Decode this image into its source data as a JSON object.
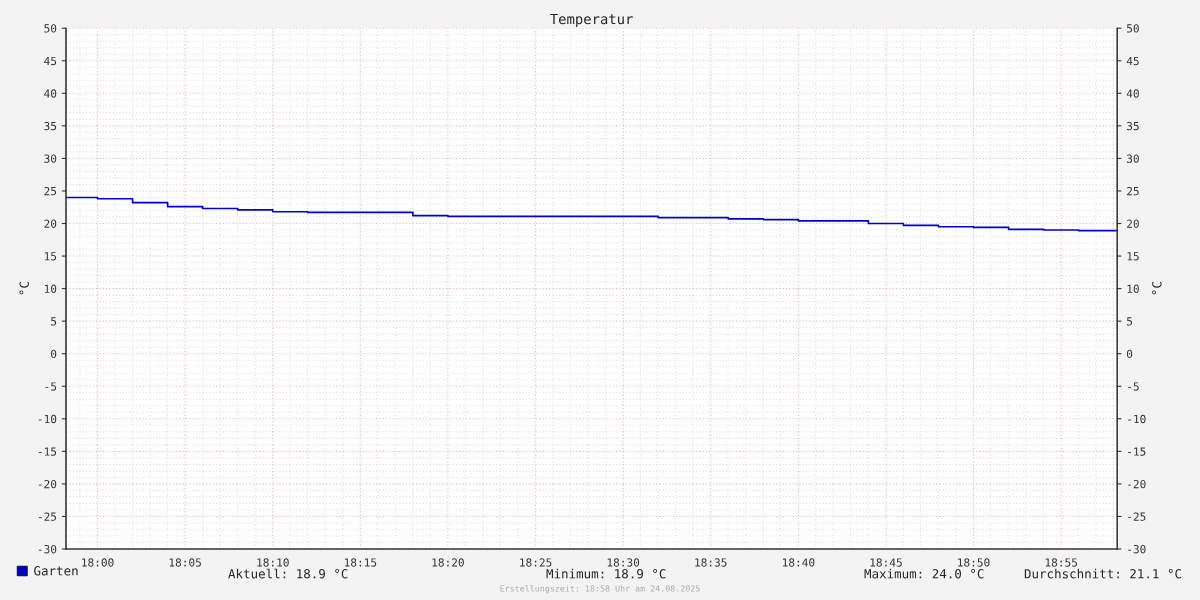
{
  "chart_data": {
    "type": "step",
    "title": "Temperatur",
    "ylabel": "°C",
    "y2label": "°C",
    "x": [
      17.97,
      18.0,
      18.0333,
      18.0667,
      18.1,
      18.1333,
      18.1667,
      18.2,
      18.2333,
      18.2667,
      18.3,
      18.3333,
      18.3667,
      18.4,
      18.4333,
      18.4667,
      18.5,
      18.5333,
      18.5667,
      18.6,
      18.6333,
      18.6667,
      18.7,
      18.7333,
      18.7667,
      18.8,
      18.8333,
      18.8667,
      18.9,
      18.9333,
      18.97
    ],
    "series": [
      {
        "name": "Garten",
        "color": "#0000cc",
        "values": [
          24.0,
          23.8,
          23.2,
          22.6,
          22.3,
          22.1,
          21.8,
          21.7,
          21.7,
          21.7,
          21.2,
          21.1,
          21.1,
          21.1,
          21.1,
          21.1,
          21.1,
          20.9,
          20.9,
          20.7,
          20.6,
          20.4,
          20.4,
          20.0,
          19.7,
          19.5,
          19.4,
          19.1,
          19.0,
          18.9,
          18.9
        ]
      }
    ],
    "xlim": [
      17.97,
      18.97
    ],
    "xticks": [
      {
        "value": 18.0,
        "label": "18:00"
      },
      {
        "value": 18.0833,
        "label": "18:05"
      },
      {
        "value": 18.1667,
        "label": "18:10"
      },
      {
        "value": 18.25,
        "label": "18:15"
      },
      {
        "value": 18.3333,
        "label": "18:20"
      },
      {
        "value": 18.4167,
        "label": "18:25"
      },
      {
        "value": 18.5,
        "label": "18:30"
      },
      {
        "value": 18.5833,
        "label": "18:35"
      },
      {
        "value": 18.6667,
        "label": "18:40"
      },
      {
        "value": 18.75,
        "label": "18:45"
      },
      {
        "value": 18.8333,
        "label": "18:50"
      },
      {
        "value": 18.9167,
        "label": "18:55"
      }
    ],
    "ylim": [
      -30,
      50
    ],
    "yticks": [
      -30,
      -25,
      -20,
      -15,
      -10,
      -5,
      0,
      5,
      10,
      15,
      20,
      25,
      30,
      35,
      40,
      45,
      50
    ],
    "y2lim": [
      -30,
      50
    ],
    "y2ticks": [
      -30,
      -25,
      -20,
      -15,
      -10,
      -5,
      0,
      5,
      10,
      15,
      20,
      25,
      30,
      35,
      40,
      45,
      50
    ],
    "grid": true,
    "legend": "bottom left",
    "annotations": [
      "Aktuell: 18.9 °C",
      "Minimum: 18.9 °C",
      "Maximum: 24.0 °C",
      "Durchschnitt: 21.1 °C",
      "Erstellungszeit: 18:58 Uhr am 24.08.2025"
    ]
  }
}
